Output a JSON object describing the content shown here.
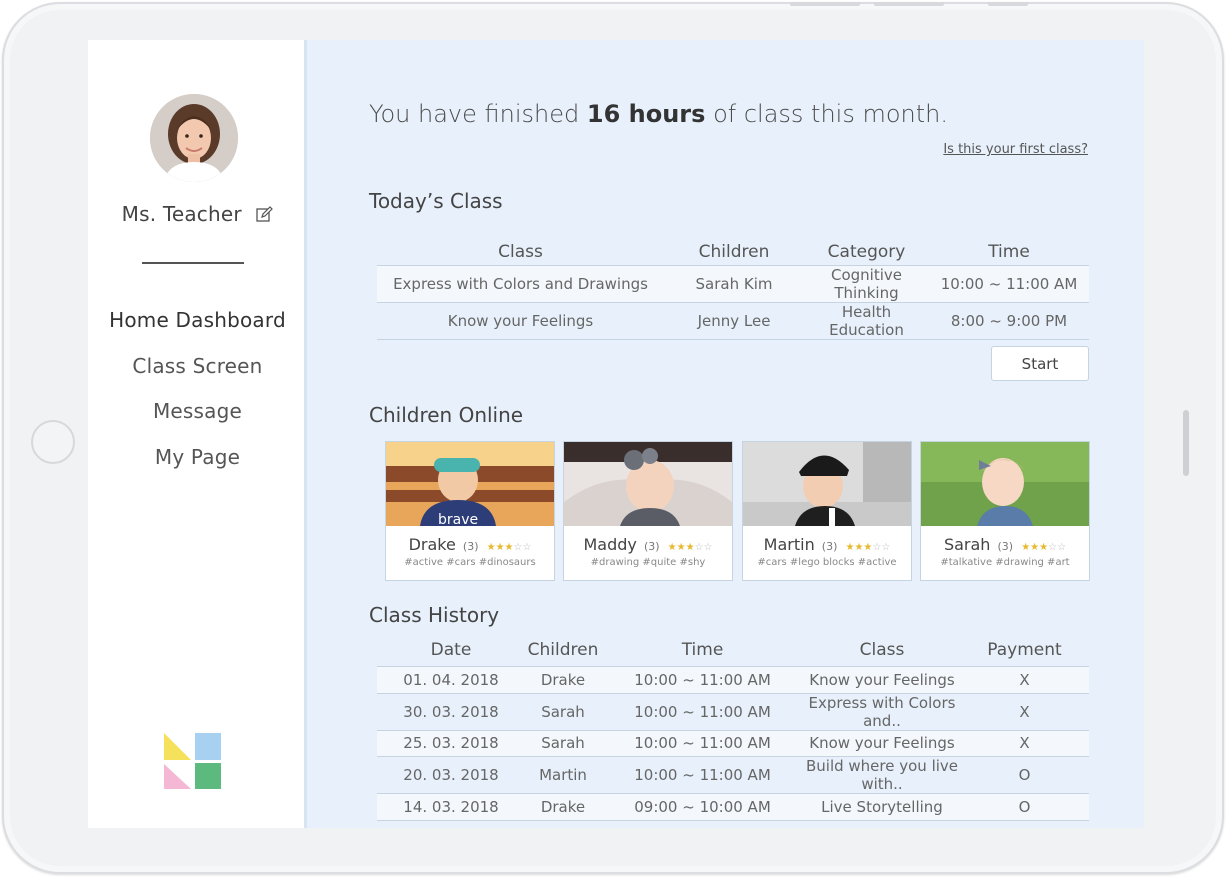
{
  "header": {
    "headline_prefix": "You have finished",
    "headline_bold": "16 hours",
    "headline_suffix": "of class this month.",
    "first_class_link": "Is this your first class?"
  },
  "sidebar": {
    "teacher_name": "Ms. Teacher",
    "nav": [
      {
        "label": "Home Dashboard",
        "active": true
      },
      {
        "label": "Class Screen",
        "active": false
      },
      {
        "label": "Message",
        "active": false
      },
      {
        "label": "My Page",
        "active": false
      }
    ]
  },
  "todays_class": {
    "title": "Today’s Class",
    "columns": [
      "Class",
      "Children",
      "Category",
      "Time"
    ],
    "rows": [
      [
        "Express with Colors and Drawings",
        "Sarah Kim",
        "Cognitive Thinking",
        "10:00 ~ 11:00 AM"
      ],
      [
        "Know your Feelings",
        "Jenny Lee",
        "Health Education",
        "8:00 ~ 9:00 PM"
      ]
    ],
    "start_label": "Start"
  },
  "children_online": {
    "title": "Children Online",
    "children": [
      {
        "name": "Drake",
        "count": "(3)",
        "rating": 3,
        "max_rating": 5,
        "tags": "#active #cars #dinosaurs"
      },
      {
        "name": "Maddy",
        "count": "(3)",
        "rating": 3,
        "max_rating": 5,
        "tags": "#drawing #quite #shy"
      },
      {
        "name": "Martin",
        "count": "(3)",
        "rating": 3,
        "max_rating": 5,
        "tags": "#cars #lego blocks #active"
      },
      {
        "name": "Sarah",
        "count": "(3)",
        "rating": 3,
        "max_rating": 5,
        "tags": "#talkative #drawing #art"
      }
    ]
  },
  "class_history": {
    "title": "Class History",
    "columns": [
      "Date",
      "Children",
      "Time",
      "Class",
      "Payment"
    ],
    "rows": [
      [
        "01. 04. 2018",
        "Drake",
        "10:00 ~ 11:00 AM",
        "Know your Feelings",
        "X"
      ],
      [
        "30. 03. 2018",
        "Sarah",
        "10:00 ~ 11:00 AM",
        "Express with Colors and..",
        "X"
      ],
      [
        "25. 03. 2018",
        "Sarah",
        "10:00 ~ 11:00 AM",
        "Know your Feelings",
        "X"
      ],
      [
        "20. 03. 2018",
        "Martin",
        "10:00 ~ 11:00 AM",
        "Build where you live with..",
        "O"
      ],
      [
        "14. 03. 2018",
        "Drake",
        "09:00 ~ 10:00 AM",
        "Live Storytelling",
        "O"
      ]
    ]
  },
  "colors": {
    "screen_bg": "#e8f1fb",
    "star_on": "#e8b92e",
    "star_off": "#bdbdbd",
    "logo_yellow": "#f5e15c",
    "logo_blue": "#a8d0f0",
    "logo_pink": "#f4b8d4",
    "logo_green": "#5dba7e"
  },
  "icons": {
    "edit": "pencil-square-icon",
    "logo": "four-square-logo-icon"
  }
}
